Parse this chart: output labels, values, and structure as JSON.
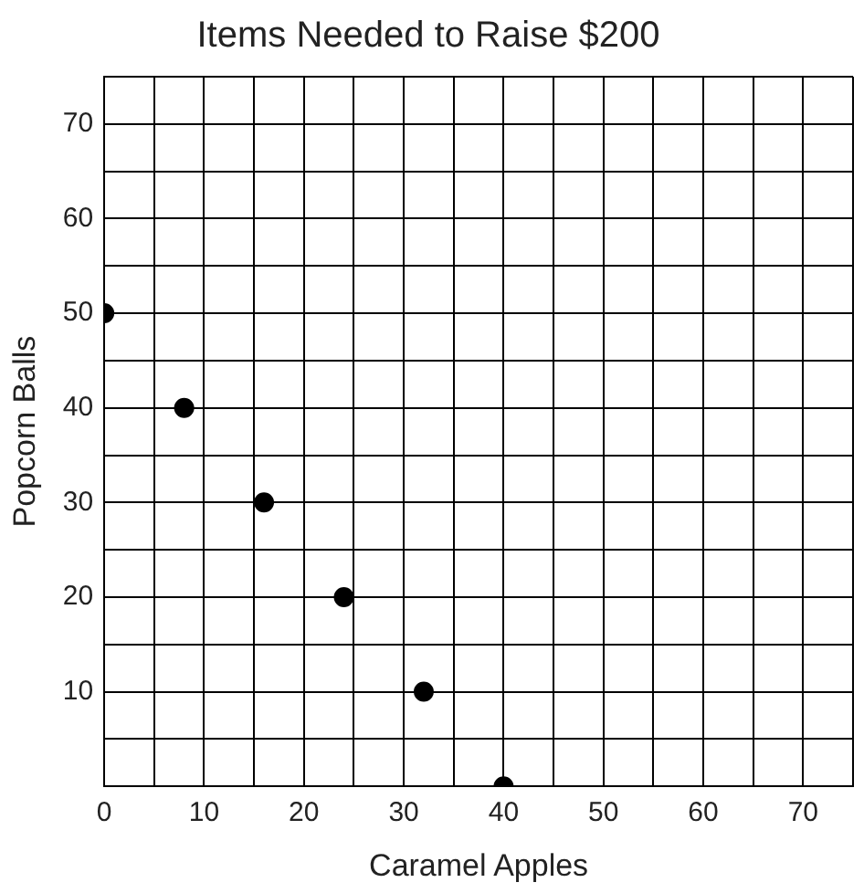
{
  "chart_data": {
    "type": "scatter",
    "title": "Items Needed to Raise $200",
    "xlabel": "Caramel Apples",
    "ylabel": "Popcorn Balls",
    "x": [
      0,
      8,
      16,
      24,
      32,
      40
    ],
    "values": [
      50,
      40,
      30,
      20,
      10,
      0
    ],
    "color": "#000000",
    "marker": "circle",
    "grid": true,
    "legend": false,
    "xlim": [
      0,
      75
    ],
    "ylim": [
      0,
      75
    ],
    "xticks": [
      0,
      {
        "value": 5,
        "label": null
      },
      10,
      {
        "value": 15,
        "label": null
      },
      20,
      {
        "value": 25,
        "label": null
      },
      30,
      {
        "value": 35,
        "label": null
      },
      40,
      {
        "value": 45,
        "label": null
      },
      50,
      {
        "value": 55,
        "label": null
      },
      60,
      {
        "value": 65,
        "label": null
      },
      70,
      {
        "value": 75,
        "label": null
      }
    ],
    "yticks": [
      {
        "value": 0,
        "label": null
      },
      {
        "value": 5,
        "label": null
      },
      10,
      {
        "value": 15,
        "label": null
      },
      20,
      {
        "value": 25,
        "label": null
      },
      30,
      {
        "value": 35,
        "label": null
      },
      40,
      {
        "value": 45,
        "label": null
      },
      50,
      {
        "value": 55,
        "label": null
      },
      60,
      {
        "value": 65,
        "label": null
      },
      70,
      {
        "value": 75,
        "label": null
      }
    ]
  }
}
